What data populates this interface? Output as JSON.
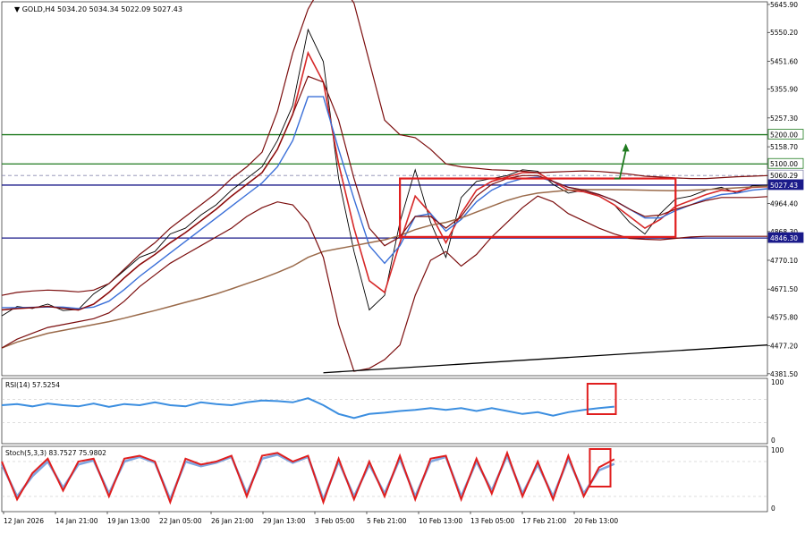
{
  "header": {
    "symbol": "GOLD,H4",
    "ohlc": "5034.20 5034.34 5022.09 5027.43"
  },
  "colors": {
    "price_line": "#000000",
    "bollinger": "#7b0d0d",
    "ma_fast": "#d62828",
    "ma_mid": "#3a6fd8",
    "ma_slow": "#9a6a4a",
    "level_green": "#1f7a1f",
    "level_navy": "#1a1a8a",
    "highlight_box": "#e01e1e",
    "rsi_line": "#3b8ee0",
    "stoch_main": "#e01e1e",
    "stoch_signal": "#7fa6e0",
    "arrow": "#1f7a1f"
  },
  "chart_data": [
    {
      "type": "line",
      "title": "GOLD,H4",
      "y_ticks": [
        "5645.90",
        "5550.20",
        "5451.60",
        "5355.90",
        "5257.30",
        "5158.70",
        "5060.29",
        "5027.43",
        "4964.40",
        "4868.30",
        "4846.30",
        "4770.10",
        "4671.50",
        "4575.80",
        "4477.20",
        "4381.50"
      ],
      "ylim": [
        4375,
        5655
      ],
      "x_ticks": [
        "12 Jan 2026",
        "14 Jan 21:00",
        "19 Jan 13:00",
        "22 Jan 05:00",
        "26 Jan 21:00",
        "29 Jan 13:00",
        "3 Feb 05:00",
        "5 Feb 21:00",
        "10 Feb 13:00",
        "13 Feb 05:00",
        "17 Feb 21:00",
        "20 Feb 13:00"
      ],
      "x": [
        0,
        2,
        4,
        6,
        8,
        10,
        12,
        14,
        16,
        18,
        20,
        22,
        24,
        26,
        28,
        30,
        32,
        34,
        36,
        38,
        40,
        42,
        44,
        46,
        48,
        50,
        52,
        54,
        56,
        58,
        60,
        62,
        64,
        66,
        68,
        70,
        72,
        74,
        76,
        78,
        80,
        82,
        84,
        86,
        88,
        90,
        92,
        94,
        96,
        98,
        100
      ],
      "series": [
        {
          "role": "price",
          "values": [
            4580,
            4612,
            4605,
            4620,
            4598,
            4602,
            4655,
            4690,
            4735,
            4780,
            4800,
            4860,
            4880,
            4925,
            4960,
            5010,
            5050,
            5090,
            5180,
            5300,
            5560,
            5450,
            5050,
            4800,
            4600,
            4650,
            4900,
            5080,
            4900,
            4780,
            4985,
            5040,
            5050,
            5060,
            5080,
            5075,
            5030,
            5000,
            5010,
            4990,
            4960,
            4900,
            4860,
            4930,
            4980,
            4990,
            5010,
            5020,
            5000,
            5025,
            5027
          ]
        },
        {
          "role": "ma_fast",
          "values": [
            4600,
            4605,
            4608,
            4612,
            4606,
            4600,
            4620,
            4660,
            4710,
            4755,
            4790,
            4830,
            4865,
            4905,
            4945,
            4990,
            5030,
            5070,
            5150,
            5270,
            5480,
            5380,
            5100,
            4880,
            4700,
            4660,
            4830,
            4990,
            4930,
            4830,
            4930,
            5010,
            5040,
            5055,
            5070,
            5070,
            5040,
            5010,
            5005,
            4990,
            4960,
            4920,
            4880,
            4910,
            4955,
            4975,
            4995,
            5010,
            5005,
            5020,
            5022
          ]
        },
        {
          "role": "ma_mid",
          "values": [
            4608,
            4608,
            4609,
            4610,
            4610,
            4605,
            4610,
            4630,
            4670,
            4715,
            4755,
            4795,
            4835,
            4875,
            4915,
            4955,
            4995,
            5035,
            5090,
            5180,
            5330,
            5330,
            5150,
            4980,
            4820,
            4760,
            4820,
            4920,
            4930,
            4870,
            4910,
            4970,
            5010,
            5035,
            5050,
            5055,
            5040,
            5020,
            5010,
            4995,
            4975,
            4945,
            4915,
            4915,
            4940,
            4960,
            4980,
            4995,
            5000,
            5010,
            5015
          ]
        },
        {
          "role": "ma_slow",
          "values": [
            4470,
            4490,
            4505,
            4520,
            4530,
            4540,
            4550,
            4560,
            4572,
            4585,
            4598,
            4612,
            4626,
            4640,
            4655,
            4672,
            4690,
            4708,
            4728,
            4750,
            4780,
            4800,
            4810,
            4820,
            4830,
            4840,
            4855,
            4875,
            4890,
            4900,
            4915,
            4935,
            4955,
            4975,
            4990,
            5000,
            5005,
            5010,
            5012,
            5012,
            5012,
            5011,
            5010,
            5009,
            5008,
            5010,
            5012,
            5015,
            5018,
            5021,
            5023
          ]
        },
        {
          "role": "bollinger_upper",
          "values": [
            4650,
            4660,
            4665,
            4668,
            4666,
            4662,
            4668,
            4690,
            4740,
            4790,
            4830,
            4880,
            4920,
            4960,
            5000,
            5050,
            5090,
            5140,
            5280,
            5480,
            5630,
            5720,
            5730,
            5650,
            5450,
            5250,
            5200,
            5190,
            5150,
            5100,
            5090,
            5085,
            5080,
            5078,
            5075,
            5070,
            5072,
            5074,
            5076,
            5074,
            5070,
            5065,
            5058,
            5055,
            5052,
            5050,
            5050,
            5053,
            5056,
            5058,
            5060
          ]
        },
        {
          "role": "bollinger_middle",
          "values": [
            4600,
            4605,
            4608,
            4612,
            4606,
            4600,
            4620,
            4660,
            4710,
            4755,
            4790,
            4830,
            4865,
            4905,
            4945,
            4990,
            5030,
            5070,
            5150,
            5270,
            5400,
            5380,
            5250,
            5050,
            4880,
            4820,
            4850,
            4920,
            4920,
            4880,
            4920,
            4990,
            5030,
            5050,
            5060,
            5060,
            5040,
            5020,
            5010,
            4995,
            4975,
            4945,
            4920,
            4925,
            4945,
            4960,
            4975,
            4985,
            4985,
            4985,
            4988
          ]
        },
        {
          "role": "bollinger_lower",
          "values": [
            4470,
            4500,
            4520,
            4540,
            4550,
            4560,
            4570,
            4590,
            4630,
            4680,
            4720,
            4760,
            4790,
            4820,
            4850,
            4880,
            4920,
            4950,
            4970,
            4960,
            4900,
            4780,
            4550,
            4390,
            4400,
            4430,
            4480,
            4650,
            4770,
            4800,
            4750,
            4790,
            4850,
            4900,
            4950,
            4990,
            4970,
            4930,
            4905,
            4880,
            4860,
            4845,
            4842,
            4840,
            4845,
            4850,
            4852,
            4852,
            4852,
            4852,
            4852
          ]
        }
      ],
      "levels": [
        {
          "label": "5200.00",
          "value": 5200.0,
          "role": "level_green"
        },
        {
          "label": "5100.00",
          "value": 5100.0,
          "role": "level_green"
        },
        {
          "label": "5060.29",
          "value": 5060.29,
          "role": "level_dashed"
        },
        {
          "label": "5027.43",
          "value": 5027.43,
          "role": "level_navy"
        },
        {
          "label": "4846.30",
          "value": 4846.3,
          "role": "level_navy"
        }
      ],
      "trendline": {
        "x": [
          42,
          100
        ],
        "values": [
          4385,
          4480
        ]
      },
      "highlight_box": {
        "x": [
          52,
          88
        ],
        "values": [
          4850,
          5050
        ]
      },
      "arrow": {
        "x": [
          80,
          81.5
        ],
        "values": [
          5050,
          5170
        ]
      }
    },
    {
      "type": "line",
      "title": "RSI(14) 57.5254",
      "ylim": [
        0,
        100
      ],
      "y_ticks": [
        "100",
        "0"
      ],
      "x": [
        0,
        2,
        4,
        6,
        8,
        10,
        12,
        14,
        16,
        18,
        20,
        22,
        24,
        26,
        28,
        30,
        32,
        34,
        36,
        38,
        40,
        42,
        44,
        46,
        48,
        50,
        52,
        54,
        56,
        58,
        60,
        62,
        64,
        66,
        68,
        70,
        72,
        74,
        76,
        78,
        80
      ],
      "values": [
        60,
        62,
        58,
        63,
        60,
        58,
        63,
        57,
        62,
        60,
        65,
        60,
        58,
        65,
        62,
        60,
        65,
        68,
        67,
        65,
        72,
        60,
        45,
        38,
        45,
        47,
        50,
        52,
        55,
        52,
        55,
        50,
        55,
        50,
        45,
        48,
        42,
        48,
        52,
        55,
        57.5
      ]
    },
    {
      "type": "line",
      "title": "Stoch(5,3,3) 83.7527 75.9802",
      "ylim": [
        0,
        100
      ],
      "y_ticks": [
        "100",
        "0"
      ],
      "x": [
        0,
        2,
        4,
        6,
        8,
        10,
        12,
        14,
        16,
        18,
        20,
        22,
        24,
        26,
        28,
        30,
        32,
        34,
        36,
        38,
        40,
        42,
        44,
        46,
        48,
        50,
        52,
        54,
        56,
        58,
        60,
        62,
        64,
        66,
        68,
        70,
        72,
        74,
        76,
        78,
        80
      ],
      "series": [
        {
          "role": "stoch_main",
          "values": [
            80,
            15,
            60,
            85,
            30,
            80,
            85,
            20,
            85,
            90,
            80,
            10,
            85,
            75,
            80,
            90,
            20,
            90,
            95,
            80,
            90,
            10,
            85,
            15,
            80,
            20,
            90,
            15,
            85,
            90,
            15,
            85,
            25,
            95,
            20,
            80,
            15,
            90,
            20,
            70,
            84
          ]
        },
        {
          "role": "stoch_signal",
          "values": [
            75,
            20,
            55,
            80,
            35,
            75,
            82,
            25,
            80,
            88,
            78,
            15,
            80,
            72,
            78,
            88,
            25,
            85,
            92,
            78,
            88,
            15,
            80,
            20,
            75,
            25,
            85,
            20,
            80,
            88,
            20,
            80,
            30,
            90,
            25,
            75,
            20,
            85,
            25,
            65,
            76
          ]
        }
      ]
    }
  ]
}
